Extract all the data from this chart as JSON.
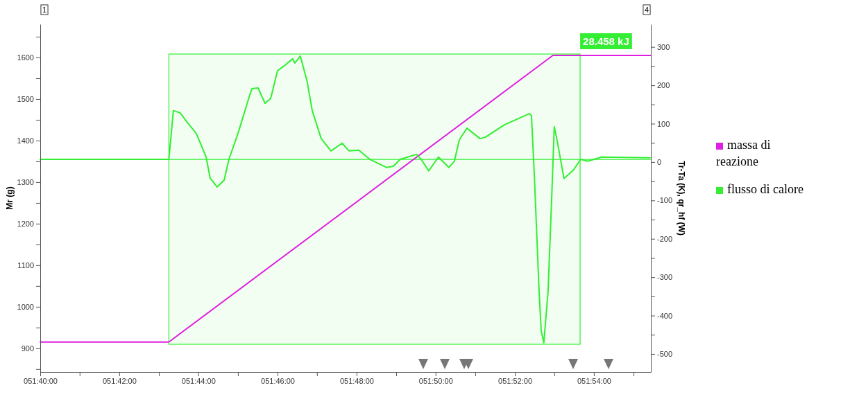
{
  "chart_data": {
    "type": "line",
    "ylabel": "Mr (g)",
    "y2label": "Tr-Ta (K), qr_hf (W)",
    "xlim": [
      51.6667,
      51.924
    ],
    "xticks": [
      {
        "value": 51.6667,
        "label": "051:40:00"
      },
      {
        "value": 51.6833,
        "label": null
      },
      {
        "value": 51.7,
        "label": "051:42:00"
      },
      {
        "value": 51.7167,
        "label": null
      },
      {
        "value": 51.7333,
        "label": "051:44:00"
      },
      {
        "value": 51.75,
        "label": null
      },
      {
        "value": 51.7667,
        "label": "051:46:00"
      },
      {
        "value": 51.7833,
        "label": null
      },
      {
        "value": 51.8,
        "label": "051:48:00"
      },
      {
        "value": 51.8167,
        "label": null
      },
      {
        "value": 51.8333,
        "label": "051:50:00"
      },
      {
        "value": 51.85,
        "label": null
      },
      {
        "value": 51.8667,
        "label": "051:52:00"
      },
      {
        "value": 51.8833,
        "label": null
      },
      {
        "value": 51.9,
        "label": "051:54:00"
      },
      {
        "value": 51.9167,
        "label": null
      }
    ],
    "ylim": [
      843,
      1680
    ],
    "yticks": [
      {
        "value": 850,
        "label": null
      },
      900,
      {
        "value": 950,
        "label": null
      },
      1000,
      {
        "value": 1050,
        "label": null
      },
      1100,
      {
        "value": 1150,
        "label": null
      },
      1200,
      {
        "value": 1250,
        "label": null
      },
      1300,
      {
        "value": 1350,
        "label": null
      },
      1400,
      {
        "value": 1450,
        "label": null
      },
      1500,
      {
        "value": 1550,
        "label": null
      },
      1600,
      {
        "value": 1650,
        "label": null
      }
    ],
    "y2lim": [
      -547,
      359
    ],
    "y2ticks": [
      {
        "value": -450,
        "label": null
      },
      -500,
      -400,
      {
        "value": -350,
        "label": null
      },
      -300,
      {
        "value": -250,
        "label": null
      },
      -200,
      {
        "value": -150,
        "label": null
      },
      -100,
      {
        "value": -50,
        "label": null
      },
      0,
      {
        "value": 50,
        "label": null
      },
      100,
      {
        "value": 150,
        "label": null
      },
      200,
      {
        "value": 250,
        "label": null
      },
      300
    ],
    "grid": false,
    "legend": "right",
    "marker": "none",
    "line_style": "solid",
    "series": [
      {
        "name": "massa di reazione",
        "color": "#e020e0",
        "x": [
          51.6667,
          51.7209,
          51.8827,
          51.924
        ],
        "values": [
          915,
          915,
          1605,
          1605
        ]
      },
      {
        "name": "flusso di calore",
        "color": "#33ee33",
        "axis": "y2",
        "x": [
          51.6667,
          51.7209,
          51.7228,
          51.7257,
          51.7287,
          51.7325,
          51.7366,
          51.7383,
          51.7412,
          51.7442,
          51.7462,
          51.75,
          51.755,
          51.7559,
          51.7585,
          51.7614,
          51.7638,
          51.7667,
          51.7696,
          51.7731,
          51.774,
          51.7763,
          51.7792,
          51.7813,
          51.7851,
          51.7892,
          51.7939,
          51.7968,
          51.8009,
          51.8056,
          51.8126,
          51.8155,
          51.8184,
          51.8252,
          51.8272,
          51.8304,
          51.8345,
          51.8389,
          51.8412,
          51.8433,
          51.8465,
          51.852,
          51.8544,
          51.8623,
          51.8728,
          51.8737,
          51.8749,
          51.8769,
          51.8778,
          51.8789,
          51.8807,
          51.8822,
          51.8833,
          51.8845,
          51.8874,
          51.8915,
          51.8944,
          51.8974,
          51.9032,
          51.9237
        ],
        "values": [
          7,
          7,
          134,
          128,
          103,
          74,
          13,
          -42,
          -65,
          -47,
          7,
          74,
          175,
          191,
          193,
          153,
          166,
          238,
          251,
          269,
          258,
          276,
          209,
          134,
          61,
          29,
          49,
          29,
          31,
          7,
          -14,
          -11,
          7,
          20,
          7,
          -23,
          13,
          -14,
          2,
          58,
          88,
          61,
          65,
          97,
          126,
          121,
          -34,
          -336,
          -440,
          -471,
          -336,
          -96,
          92,
          56,
          -43,
          -20,
          7,
          2,
          13,
          11
        ]
      }
    ],
    "ref_lines": [
      {
        "axis": "y2",
        "value": 7,
        "color": "#33ee33"
      }
    ],
    "bands": [
      {
        "axis": "x",
        "from": 51.7209,
        "to": 51.8942,
        "label": "28.458 kJ",
        "color": "#33ee33"
      }
    ],
    "annotations": [
      "1",
      "4"
    ]
  }
}
